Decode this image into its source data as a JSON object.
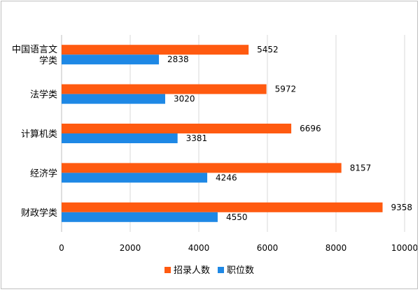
{
  "chart_data": {
    "type": "bar",
    "orientation": "horizontal",
    "categories": [
      [
        "中国语言文",
        "学类"
      ],
      [
        "法学类"
      ],
      [
        "计算机类"
      ],
      [
        "经济学"
      ],
      [
        "财政学类"
      ]
    ],
    "series": [
      {
        "name": "招录人数",
        "color": "#ff5a10",
        "values": [
          5452,
          5972,
          6696,
          8157,
          9358
        ]
      },
      {
        "name": "职位数",
        "color": "#1e88e5",
        "values": [
          2838,
          3020,
          3381,
          4246,
          4550
        ]
      }
    ],
    "xlim": [
      0,
      10000
    ],
    "xticks": [
      0,
      2000,
      4000,
      6000,
      8000,
      10000
    ],
    "grid": true,
    "legend_position": "bottom"
  }
}
